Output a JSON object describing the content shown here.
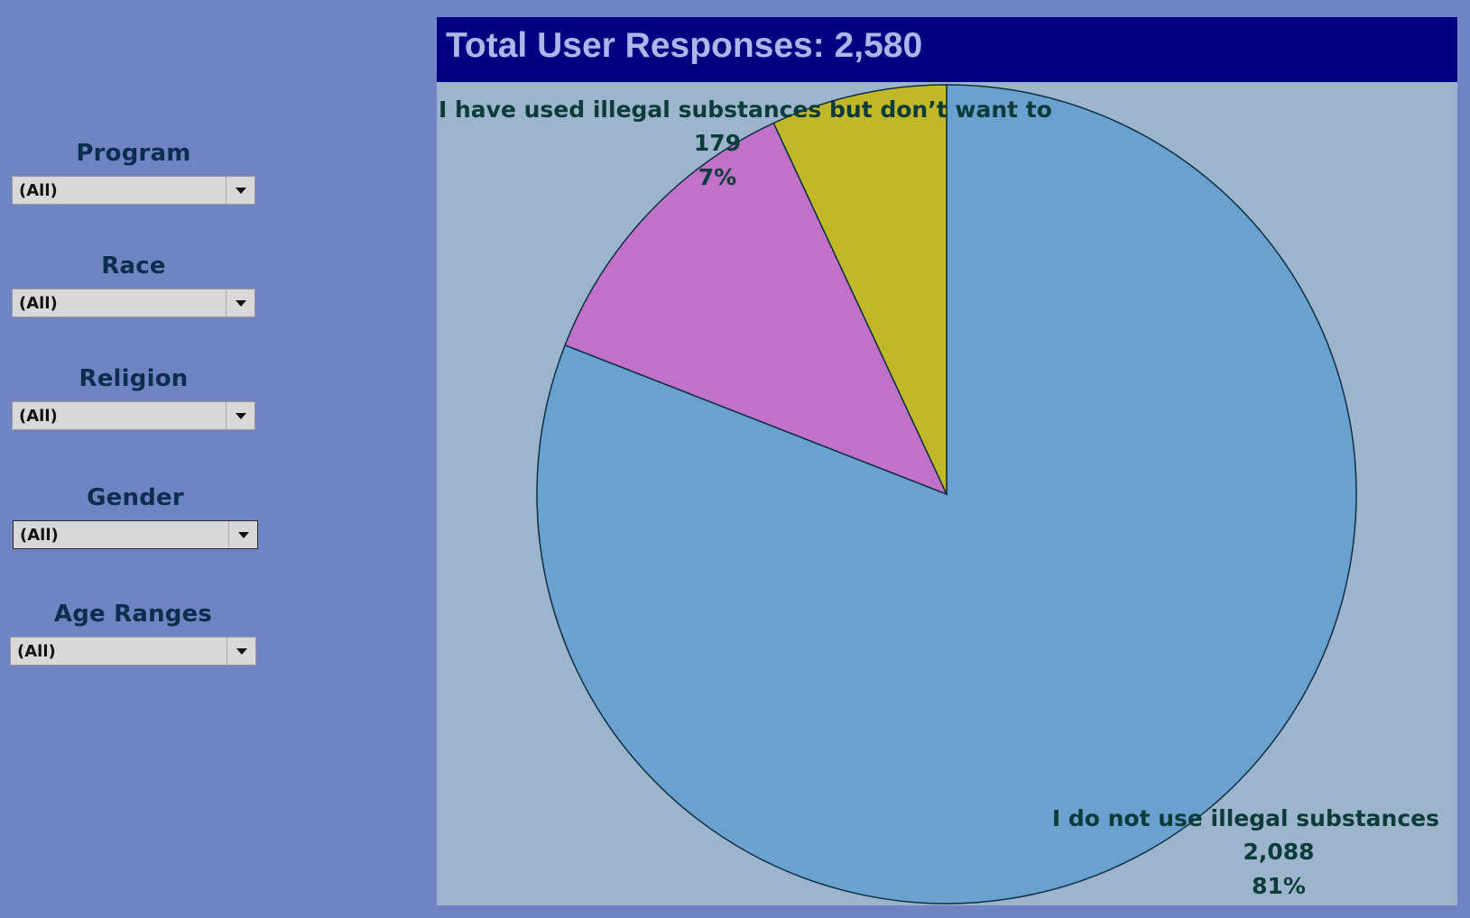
{
  "filters": [
    {
      "label": "Program",
      "value": "(All)"
    },
    {
      "label": "Race",
      "value": "(All)"
    },
    {
      "label": "Religion",
      "value": "(All)"
    },
    {
      "label": "Gender",
      "value": "(All)"
    },
    {
      "label": "Age Ranges",
      "value": "(All)"
    }
  ],
  "panel": {
    "title": "Total User Responses: 2,580"
  },
  "colors": {
    "page_background": "#7083c2",
    "panel_background": "#9cb5cc",
    "title_bar": "#000080",
    "title_text": "#a9b8e8"
  },
  "chart_data": {
    "type": "pie",
    "title": "Total User Responses: 2,580",
    "total": 2580,
    "start_angle": "12 o'clock",
    "direction": "clockwise",
    "slices": [
      {
        "label": "I do not use illegal substances",
        "value": 2088,
        "value_text": "2,088",
        "percent_text": "81%",
        "color": "#6ba1cf",
        "show_label": true
      },
      {
        "label": "",
        "value": 313,
        "value_text": "",
        "percent_text": "",
        "color": "#c271c9",
        "show_label": false
      },
      {
        "label": "I have used illegal substances but don’t want to",
        "value": 179,
        "value_text": "179",
        "percent_text": "7%",
        "color": "#c0b827",
        "show_label": true
      }
    ]
  }
}
